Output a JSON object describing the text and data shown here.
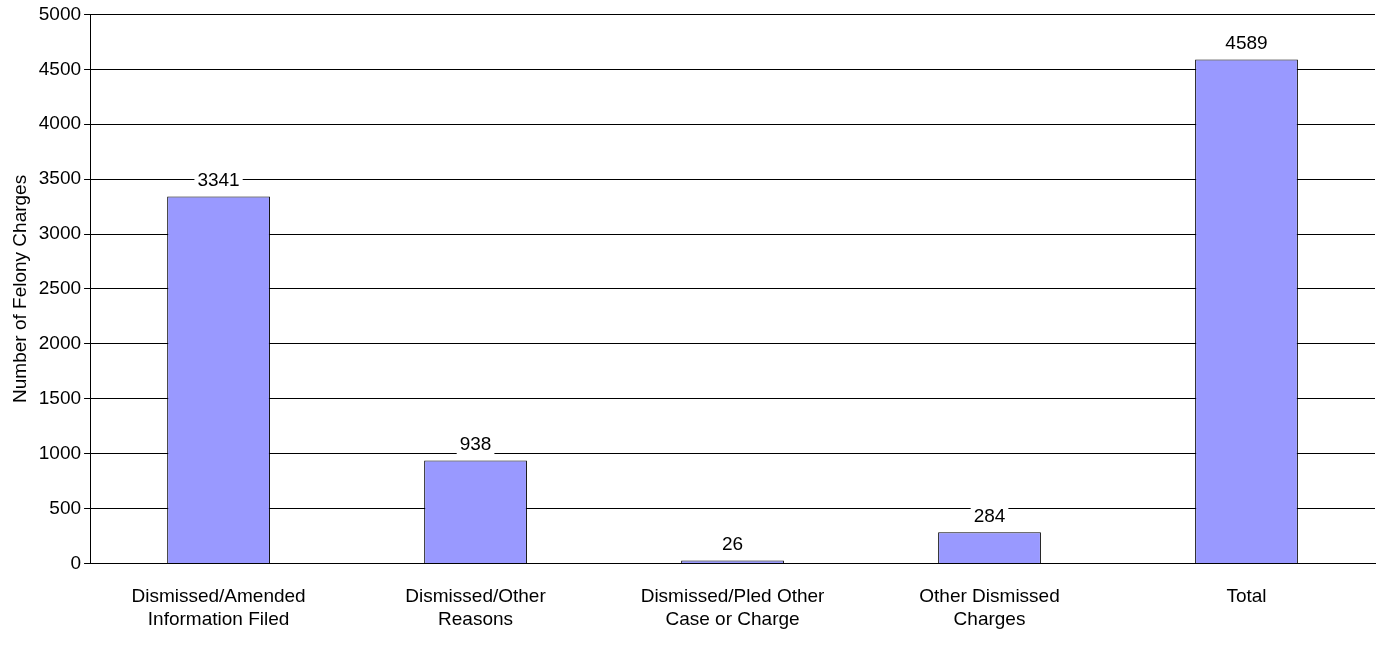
{
  "chart_data": {
    "type": "bar",
    "ylabel": "Number of Felony Charges",
    "categories": [
      "Dismissed/Amended Information Filed",
      "Dismissed/Other Reasons",
      "Dismissed/Pled Other Case or Charge",
      "Other Dismissed Charges",
      "Total"
    ],
    "values": [
      3341,
      938,
      26,
      284,
      4589
    ],
    "color": "#9999ff",
    "ylim": [
      0,
      5000
    ],
    "yticks": [
      0,
      500,
      1000,
      1500,
      2000,
      2500,
      3000,
      3500,
      4000,
      4500,
      5000
    ],
    "grid": "y",
    "data_labels": true,
    "legend": false
  }
}
